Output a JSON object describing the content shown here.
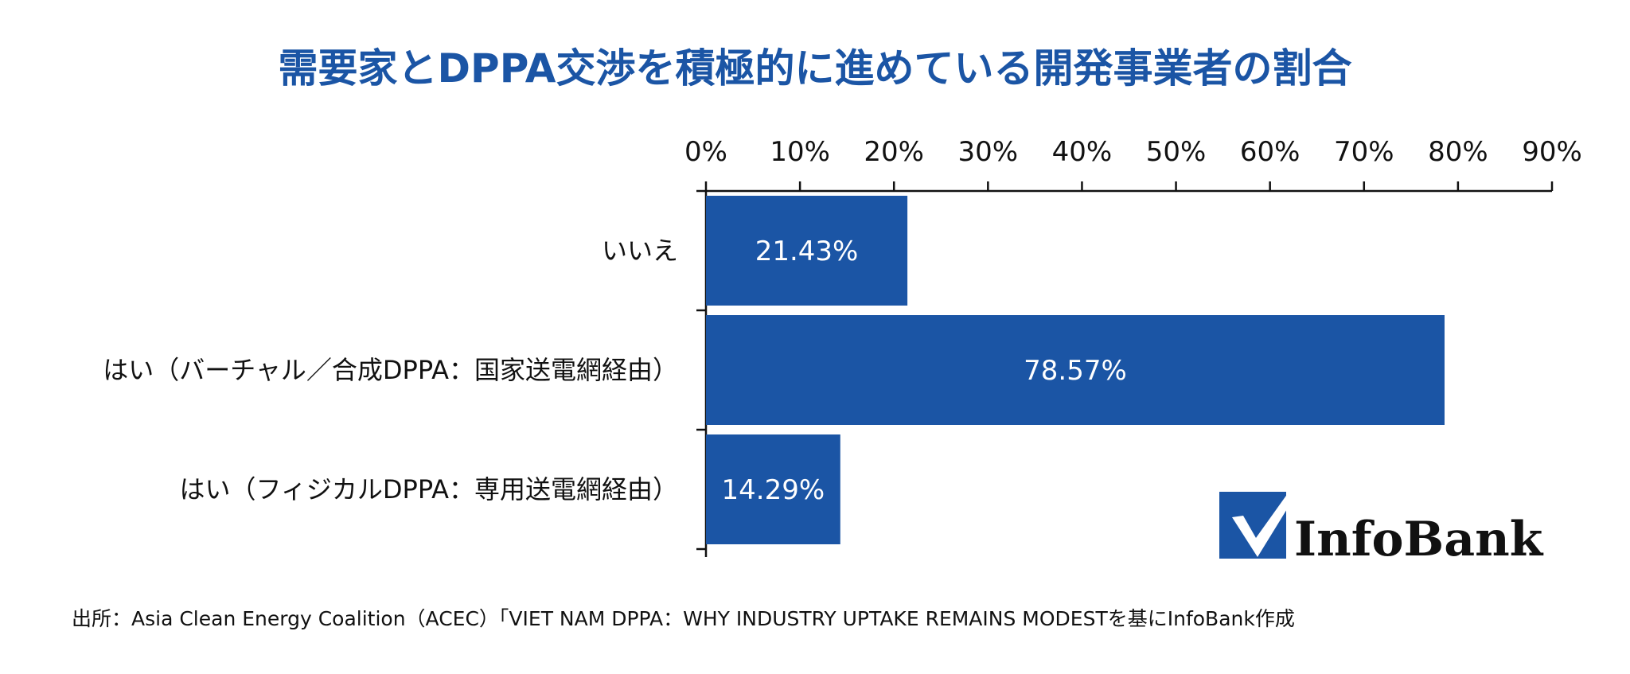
{
  "chart_data": {
    "type": "bar",
    "orientation": "horizontal",
    "title": "需要家とDPPA交渉を積極的に進めている開発事業者の割合",
    "categories": [
      "いいえ",
      "はい（バーチャル／合成DPPA：国家送電網経由）",
      "はい（フィジカルDPPA：専用送電網経由）"
    ],
    "values": [
      21.43,
      78.57,
      14.29
    ],
    "data_labels": [
      "21.43%",
      "78.57%",
      "14.29%"
    ],
    "xlim": [
      0,
      90
    ],
    "x_ticks": [
      0,
      10,
      20,
      30,
      40,
      50,
      60,
      70,
      80,
      90
    ],
    "x_tick_labels": [
      "0%",
      "10%",
      "20%",
      "30%",
      "40%",
      "50%",
      "60%",
      "70%",
      "80%",
      "90%"
    ],
    "axis_position": "top",
    "grid": false,
    "bar_color": "#1b55a5",
    "title_color": "#1b55a5",
    "source": "出所：Asia Clean Energy Coalition（ACEC）「VIET NAM DPPA：WHY INDUSTRY UPTAKE REMAINS MODESTを基にInfoBank作成"
  },
  "logo": {
    "text": "InfoBank",
    "icon": "checkmark-icon",
    "color": "#1b55a5"
  }
}
